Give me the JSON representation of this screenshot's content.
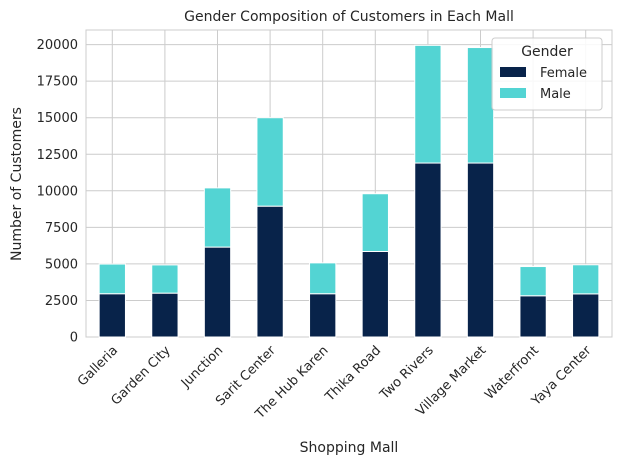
{
  "chart_data": {
    "type": "bar",
    "stacked": true,
    "title": "Gender Composition of Customers in Each Mall",
    "xlabel": "Shopping Mall",
    "ylabel": "Number of Customers",
    "categories": [
      "Galleria",
      "Garden City",
      "Junction",
      "Sarit Center",
      "The Hub Karen",
      "Thika Road",
      "Two Rivers",
      "Village Market",
      "Waterfront",
      "Yaya Center"
    ],
    "series": [
      {
        "name": "Female",
        "color": "#08234a",
        "values": [
          2960,
          3000,
          6150,
          8950,
          2960,
          5850,
          11900,
          11900,
          2820,
          2950
        ]
      },
      {
        "name": "Male",
        "color": "#53d4d3",
        "values": [
          2030,
          1930,
          4050,
          6050,
          2110,
          3950,
          8050,
          7900,
          2000,
          1990
        ]
      }
    ],
    "ylim": [
      0,
      21000
    ],
    "yticks": [
      0,
      2500,
      5000,
      7500,
      10000,
      12500,
      15000,
      17500,
      20000
    ],
    "ytick_labels": [
      "0",
      "2500",
      "5000",
      "7500",
      "10000",
      "12500",
      "15000",
      "17500",
      "20000"
    ],
    "grid": true,
    "legend": {
      "title": "Gender",
      "placement": "top-right"
    }
  }
}
